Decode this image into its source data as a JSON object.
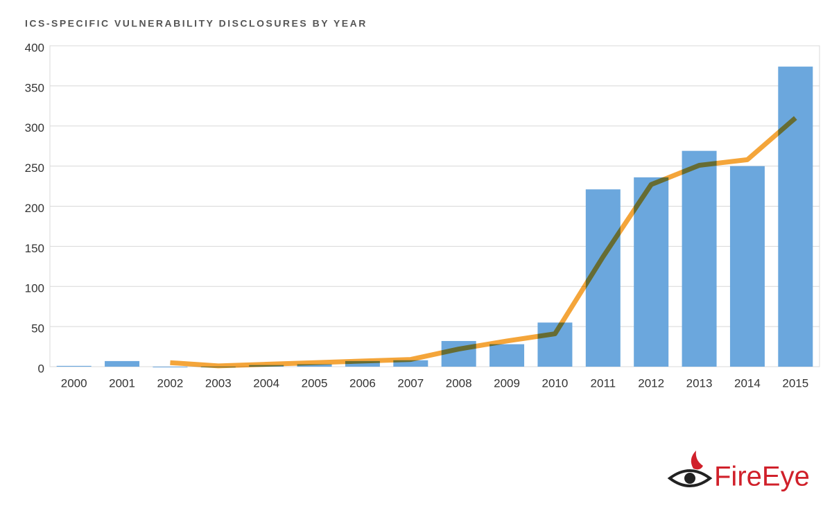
{
  "chart_data": {
    "type": "bar_line",
    "title": "ICS-SPECIFIC VULNERABILITY DISCLOSURES BY YEAR",
    "categories": [
      "2000",
      "2001",
      "2002",
      "2003",
      "2004",
      "2005",
      "2006",
      "2007",
      "2008",
      "2009",
      "2010",
      "2011",
      "2012",
      "2013",
      "2014",
      "2015"
    ],
    "series": [
      {
        "type": "bar",
        "color": "#6ba7dd",
        "values": [
          1,
          7,
          0,
          0,
          2,
          3,
          7,
          8,
          32,
          28,
          55,
          221,
          236,
          269,
          250,
          374
        ]
      },
      {
        "type": "line",
        "color": "#f4a53a",
        "values": [
          null,
          null,
          5,
          1,
          3,
          5,
          7,
          9,
          22,
          32,
          41,
          137,
          227,
          251,
          258,
          310
        ]
      }
    ],
    "ylim": [
      0,
      400
    ],
    "yticks": [
      0,
      50,
      100,
      150,
      200,
      250,
      300,
      350,
      400
    ],
    "grid": true
  },
  "logo": "FireEye"
}
